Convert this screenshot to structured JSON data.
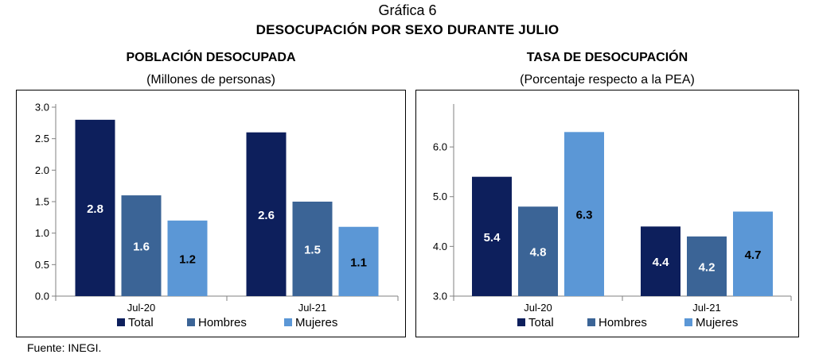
{
  "figure_label": "Gráfica 6",
  "title": "DESOCUPACIÓN POR SEXO DURANTE JULIO",
  "source": "Fuente: INEGI.",
  "colors": {
    "Total": "#0d1f5c",
    "Hombres": "#3b6496",
    "Mujeres": "#5b97d6"
  },
  "chart_data": [
    {
      "type": "bar",
      "title": "POBLACIÓN DESOCUPADA",
      "subtitle": "(Millones de personas)",
      "categories": [
        "Jul-20",
        "Jul-21"
      ],
      "series": [
        {
          "name": "Total",
          "values": [
            2.8,
            2.6
          ]
        },
        {
          "name": "Hombres",
          "values": [
            1.6,
            1.5
          ]
        },
        {
          "name": "Mujeres",
          "values": [
            1.2,
            1.1
          ]
        }
      ],
      "ylim": [
        0,
        3
      ],
      "yticks": [
        "0.0",
        "0.5",
        "1.0",
        "1.5",
        "2.0",
        "2.5",
        "3.0"
      ],
      "xlabel": "",
      "ylabel": "",
      "legend": "bottom",
      "grid": false
    },
    {
      "type": "bar",
      "title": "TASA DE DESOCUPACIÓN",
      "subtitle": "(Porcentaje respecto a la PEA)",
      "categories": [
        "Jul-20",
        "Jul-21"
      ],
      "series": [
        {
          "name": "Total",
          "values": [
            5.4,
            4.4
          ]
        },
        {
          "name": "Hombres",
          "values": [
            4.8,
            4.2
          ]
        },
        {
          "name": "Mujeres",
          "values": [
            6.3,
            4.7
          ]
        }
      ],
      "ylim": [
        3,
        6.8
      ],
      "yticks": [
        "3.0",
        "4.0",
        "5.0",
        "6.0"
      ],
      "xlabel": "",
      "ylabel": "",
      "legend": "bottom",
      "grid": false
    }
  ]
}
